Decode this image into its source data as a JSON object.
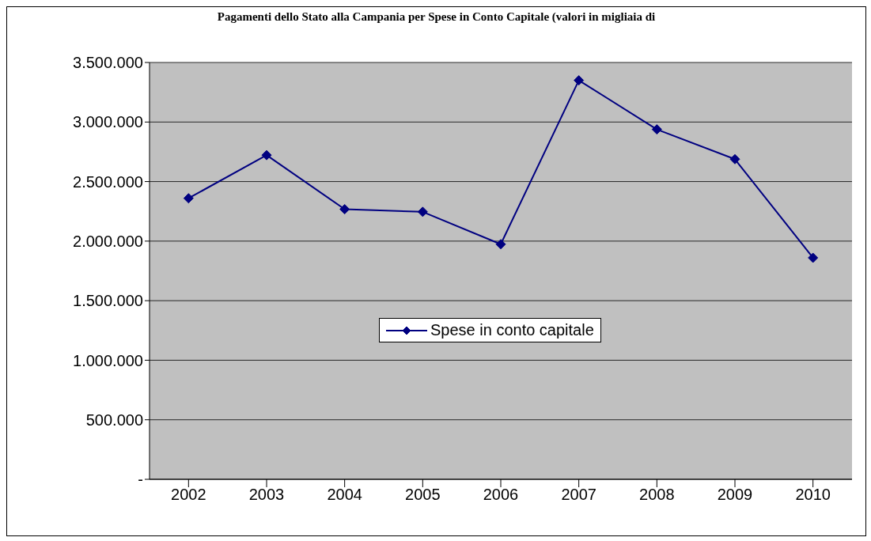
{
  "chart_data": {
    "type": "line",
    "title": "Pagamenti dello Stato alla Campania per Spese in Conto Capitale (valori in migliaia di",
    "categories": [
      "2002",
      "2003",
      "2004",
      "2005",
      "2006",
      "2007",
      "2008",
      "2009",
      "2010"
    ],
    "series": [
      {
        "name": "Spese in conto capitale",
        "color": "#000080",
        "values": [
          2360000,
          2722000,
          2268000,
          2246000,
          1974000,
          3350000,
          2938000,
          2688000,
          1860000
        ]
      }
    ],
    "ylim": [
      0,
      3500000
    ],
    "yticks": [
      {
        "value": 0,
        "label": "-"
      },
      {
        "value": 500000,
        "label": "500.000"
      },
      {
        "value": 1000000,
        "label": "1.000.000"
      },
      {
        "value": 1500000,
        "label": "1.500.000"
      },
      {
        "value": 2000000,
        "label": "2.000.000"
      },
      {
        "value": 2500000,
        "label": "2.500.000"
      },
      {
        "value": 3000000,
        "label": "3.000.000"
      },
      {
        "value": 3500000,
        "label": "3.500.000"
      }
    ],
    "grid": "y",
    "legend": "center",
    "marker": "diamond",
    "line_style": "solid"
  }
}
